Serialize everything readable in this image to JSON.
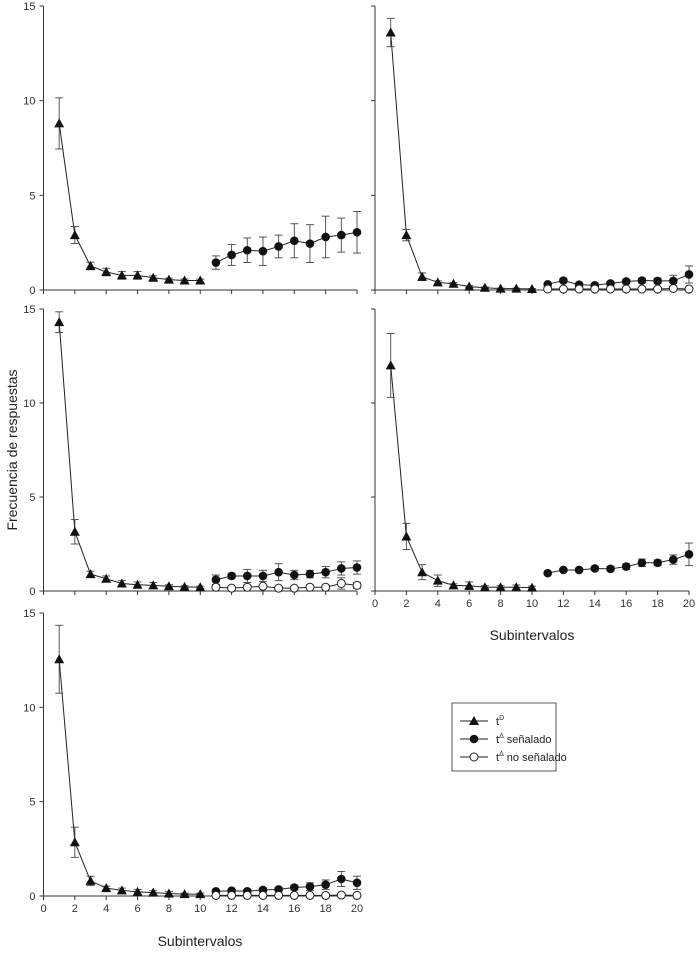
{
  "chart_data": {
    "type": "line",
    "ylabel": "Frecuencia de respuestas",
    "xlabel": "Subintervalos",
    "xlim": [
      0,
      20
    ],
    "ylim": [
      0,
      15
    ],
    "x_ticks": [
      0,
      2,
      4,
      6,
      8,
      10,
      12,
      14,
      16,
      18,
      20
    ],
    "y_ticks": [
      0,
      5,
      10,
      15
    ],
    "grid": false,
    "legend": {
      "placement": "bottom-right",
      "entries": [
        {
          "marker": "filled-triangle",
          "base": "t",
          "sup": "D",
          "suffix": ""
        },
        {
          "marker": "filled-circle",
          "base": "t",
          "sup": "Δ",
          "suffix": " señalado"
        },
        {
          "marker": "open-circle",
          "base": "t",
          "sup": "Δ",
          "suffix": " no señalado"
        }
      ]
    },
    "panels": [
      {
        "position": "top-left",
        "series": [
          {
            "legend": "tD",
            "marker": "filled-triangle",
            "x": [
              1,
              2,
              3,
              4,
              5,
              6,
              7,
              8,
              9,
              10
            ],
            "y": [
              8.8,
              2.9,
              1.27,
              0.95,
              0.77,
              0.77,
              0.65,
              0.55,
              0.5,
              0.5
            ],
            "err": [
              1.35,
              0.45,
              0.2,
              0.2,
              0.2,
              0.2,
              0.1,
              0.08,
              0.08,
              0.08
            ]
          },
          {
            "legend": "tΔ señalado",
            "marker": "filled-circle",
            "x": [
              11,
              12,
              13,
              14,
              15,
              16,
              17,
              18,
              19,
              20
            ],
            "y": [
              1.45,
              1.85,
              2.1,
              2.05,
              2.3,
              2.6,
              2.45,
              2.8,
              2.9,
              3.05
            ],
            "err": [
              0.35,
              0.55,
              0.65,
              0.75,
              0.6,
              0.9,
              1.0,
              1.1,
              0.9,
              1.1
            ]
          }
        ]
      },
      {
        "position": "top-right",
        "series": [
          {
            "legend": "tD",
            "marker": "filled-triangle",
            "x": [
              1,
              2,
              3,
              4,
              5,
              6,
              7,
              8,
              9,
              10
            ],
            "y": [
              13.6,
              2.9,
              0.7,
              0.4,
              0.33,
              0.18,
              0.12,
              0.07,
              0.07,
              0.05
            ],
            "err": [
              0.75,
              0.3,
              0.2,
              0.08,
              0.06,
              0.05,
              0.04,
              0.03,
              0.03,
              0.03
            ]
          },
          {
            "legend": "tΔ señalado",
            "marker": "filled-circle",
            "x": [
              11,
              12,
              13,
              14,
              15,
              16,
              17,
              18,
              19,
              20
            ],
            "y": [
              0.3,
              0.5,
              0.28,
              0.25,
              0.35,
              0.45,
              0.5,
              0.48,
              0.48,
              0.82
            ],
            "err": [
              0.08,
              0.1,
              0.08,
              0.08,
              0.1,
              0.12,
              0.12,
              0.15,
              0.3,
              0.45
            ]
          },
          {
            "legend": "tΔ no señalado",
            "marker": "open-circle",
            "x": [
              11,
              12,
              13,
              14,
              15,
              16,
              17,
              18,
              19,
              20
            ],
            "y": [
              0.05,
              0.05,
              0.05,
              0.05,
              0.05,
              0.05,
              0.05,
              0.05,
              0.08,
              0.05
            ],
            "err": [
              0.03,
              0.03,
              0.03,
              0.03,
              0.03,
              0.03,
              0.03,
              0.03,
              0.05,
              0.03
            ]
          }
        ]
      },
      {
        "position": "middle-left",
        "series": [
          {
            "legend": "tD",
            "marker": "filled-triangle",
            "x": [
              1,
              2,
              3,
              4,
              5,
              6,
              7,
              8,
              9,
              10
            ],
            "y": [
              14.3,
              3.15,
              0.9,
              0.65,
              0.4,
              0.33,
              0.3,
              0.25,
              0.22,
              0.2
            ],
            "err": [
              0.55,
              0.65,
              0.15,
              0.15,
              0.15,
              0.15,
              0.15,
              0.08,
              0.06,
              0.06
            ]
          },
          {
            "legend": "tΔ señalado",
            "marker": "filled-circle",
            "x": [
              11,
              12,
              13,
              14,
              15,
              16,
              17,
              18,
              19,
              20
            ],
            "y": [
              0.6,
              0.8,
              0.8,
              0.8,
              1.0,
              0.85,
              0.9,
              1.0,
              1.2,
              1.25
            ],
            "err": [
              0.25,
              0.15,
              0.35,
              0.3,
              0.45,
              0.25,
              0.2,
              0.3,
              0.35,
              0.35
            ]
          },
          {
            "legend": "tΔ no señalado",
            "marker": "open-circle",
            "x": [
              11,
              12,
              13,
              14,
              15,
              16,
              17,
              18,
              19,
              20
            ],
            "y": [
              0.2,
              0.15,
              0.2,
              0.25,
              0.15,
              0.15,
              0.2,
              0.2,
              0.4,
              0.3
            ],
            "err": [
              0.05,
              0.05,
              0.05,
              0.08,
              0.05,
              0.05,
              0.05,
              0.1,
              0.3,
              0.15
            ]
          }
        ]
      },
      {
        "position": "middle-right",
        "series": [
          {
            "legend": "tD",
            "marker": "filled-triangle",
            "x": [
              1,
              2,
              3,
              4,
              5,
              6,
              7,
              8,
              9,
              10
            ],
            "y": [
              12.0,
              2.9,
              1.0,
              0.55,
              0.3,
              0.28,
              0.2,
              0.2,
              0.2,
              0.18
            ],
            "err": [
              1.7,
              0.7,
              0.4,
              0.3,
              0.08,
              0.2,
              0.08,
              0.08,
              0.12,
              0.08
            ]
          },
          {
            "legend": "tΔ señalado",
            "marker": "filled-circle",
            "x": [
              11,
              12,
              13,
              14,
              15,
              16,
              17,
              18,
              19,
              20
            ],
            "y": [
              0.95,
              1.12,
              1.12,
              1.2,
              1.18,
              1.3,
              1.5,
              1.5,
              1.67,
              1.95
            ],
            "err": [
              0.05,
              0.08,
              0.1,
              0.1,
              0.12,
              0.15,
              0.2,
              0.15,
              0.25,
              0.6
            ]
          }
        ]
      },
      {
        "position": "bottom-left",
        "series": [
          {
            "legend": "tD",
            "marker": "filled-triangle",
            "x": [
              1,
              2,
              3,
              4,
              5,
              6,
              7,
              8,
              9,
              10
            ],
            "y": [
              12.55,
              2.85,
              0.8,
              0.42,
              0.3,
              0.22,
              0.18,
              0.13,
              0.1,
              0.1
            ],
            "err": [
              1.8,
              0.8,
              0.25,
              0.1,
              0.12,
              0.12,
              0.1,
              0.1,
              0.05,
              0.05
            ]
          },
          {
            "legend": "tΔ señalado",
            "marker": "filled-circle",
            "x": [
              11,
              12,
              13,
              14,
              15,
              16,
              17,
              18,
              19,
              20
            ],
            "y": [
              0.25,
              0.28,
              0.25,
              0.32,
              0.35,
              0.45,
              0.5,
              0.6,
              0.9,
              0.7
            ],
            "err": [
              0.05,
              0.08,
              0.08,
              0.1,
              0.1,
              0.12,
              0.2,
              0.25,
              0.4,
              0.35
            ]
          },
          {
            "legend": "tΔ no señalado",
            "marker": "open-circle",
            "x": [
              11,
              12,
              13,
              14,
              15,
              16,
              17,
              18,
              19,
              20
            ],
            "y": [
              0.03,
              0.03,
              0.03,
              0.03,
              0.03,
              0.03,
              0.03,
              0.03,
              0.05,
              0.03
            ],
            "err": [
              0.02,
              0.02,
              0.02,
              0.02,
              0.02,
              0.02,
              0.02,
              0.02,
              0.03,
              0.02
            ]
          }
        ]
      }
    ]
  }
}
